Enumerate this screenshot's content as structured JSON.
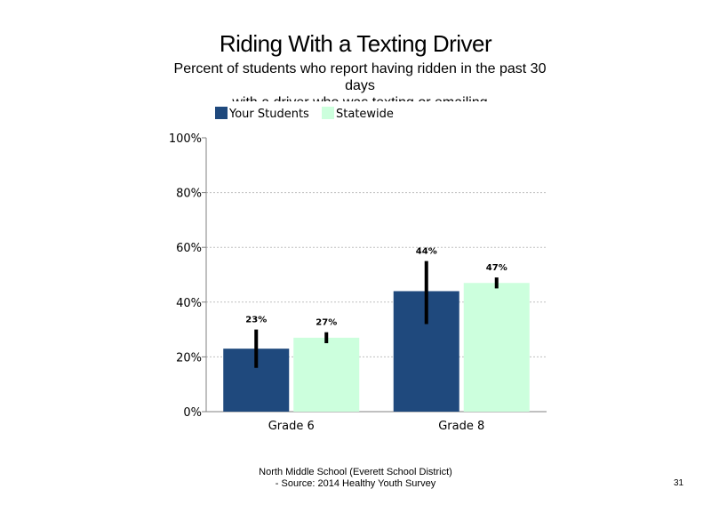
{
  "title": "Riding With a Texting Driver",
  "subtitle_lines": [
    "Percent of students who report having ridden in the past 30",
    "days",
    "with a driver who was texting or emailing"
  ],
  "footer_lines": [
    "North Middle School (Everett School District)",
    "- Source: 2014 Healthy Youth Survey"
  ],
  "page_number": "31",
  "colors": {
    "your_students": "#1f497d",
    "statewide": "#ccffdd",
    "error_bar": "#000000",
    "gridline": "#bfbfbf"
  },
  "chart_data": {
    "type": "bar",
    "categories": [
      "Grade 6",
      "Grade 8"
    ],
    "series": [
      {
        "name": "Your Students",
        "values": [
          23,
          44
        ],
        "labels": [
          "23%",
          "44%"
        ],
        "error_low": [
          16,
          32
        ],
        "error_high": [
          30,
          55
        ]
      },
      {
        "name": "Statewide",
        "values": [
          27,
          47
        ],
        "labels": [
          "27%",
          "47%"
        ],
        "error_low": [
          25,
          45
        ],
        "error_high": [
          29,
          49
        ]
      }
    ],
    "ylim": [
      0,
      100
    ],
    "yticks": [
      "0%",
      "20%",
      "40%",
      "60%",
      "80%",
      "100%"
    ],
    "ytick_values": [
      0,
      20,
      40,
      60,
      80,
      100
    ],
    "grid": true,
    "legend_position": "top-left"
  }
}
